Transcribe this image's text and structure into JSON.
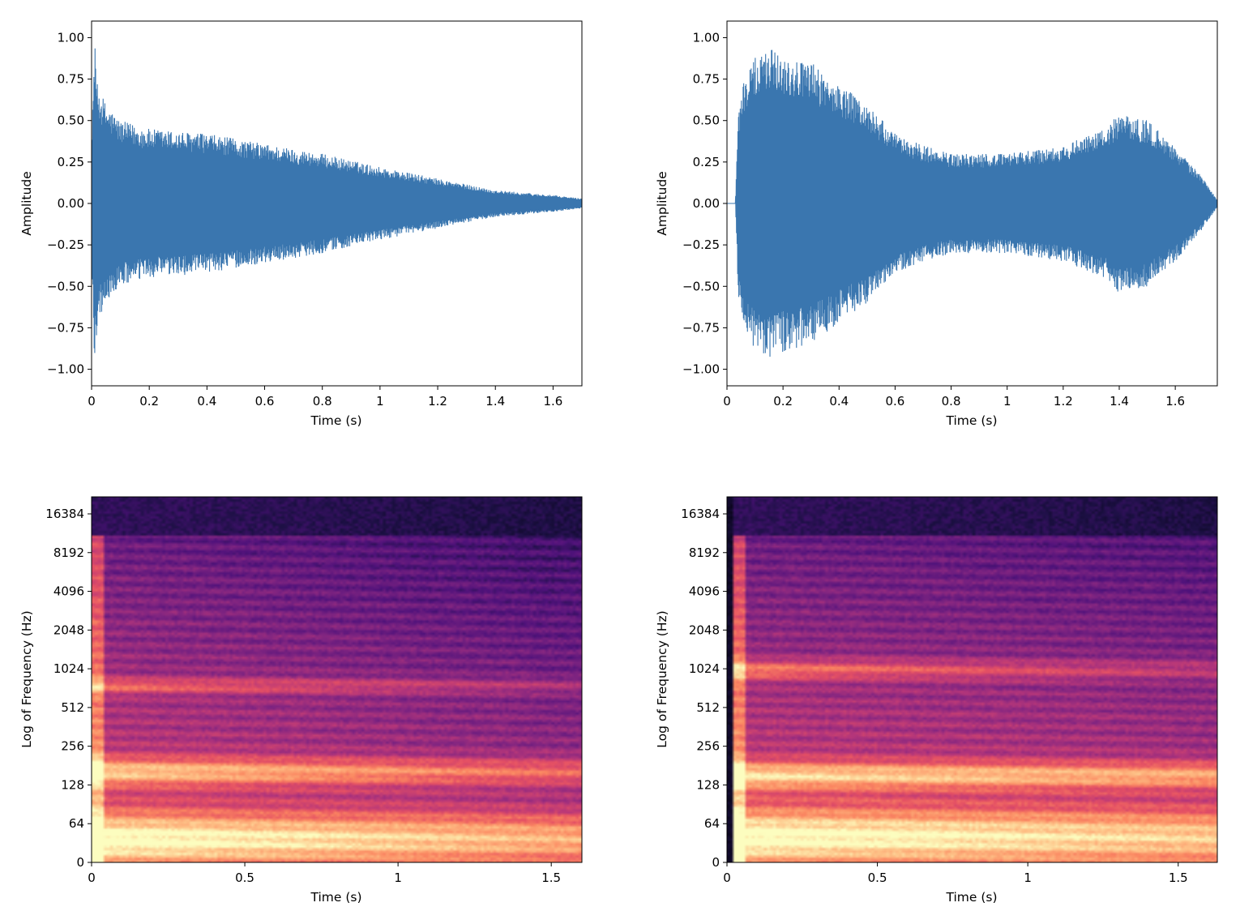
{
  "colors": {
    "waveform": "#3a76af",
    "spectrogram_low": "#1b0c41",
    "spectrogram_mid": "#b73779",
    "spectrogram_high": "#fcfdbf",
    "axes": "#000000",
    "background": "#ffffff"
  },
  "chart_data": [
    {
      "type": "line",
      "panel": "waveform-left",
      "title": "",
      "xlabel": "Time (s)",
      "ylabel": "Amplitude",
      "xlim": [
        0,
        1.7
      ],
      "ylim": [
        -1.1,
        1.1
      ],
      "x_ticks": [
        0,
        0.2,
        0.4,
        0.6,
        0.8,
        1,
        1.2,
        1.4,
        1.6
      ],
      "x_tick_labels": [
        "0",
        "0.2",
        "0.4",
        "0.6",
        "0.8",
        "1",
        "1.2",
        "1.4",
        "1.6"
      ],
      "y_ticks": [
        1.0,
        0.75,
        0.5,
        0.25,
        0.0,
        -0.25,
        -0.5,
        -0.75,
        -1.0
      ],
      "y_tick_labels": [
        "1.00",
        "0.75",
        "0.50",
        "0.25",
        "0.00",
        "−0.25",
        "−0.50",
        "−0.75",
        "−1.00"
      ],
      "grid": false,
      "envelope_x": [
        0,
        0.01,
        0.02,
        0.05,
        0.1,
        0.2,
        0.4,
        0.6,
        0.8,
        1.0,
        1.2,
        1.4,
        1.6,
        1.7
      ],
      "envelope_y": [
        0.3,
        1.0,
        0.72,
        0.6,
        0.5,
        0.45,
        0.42,
        0.36,
        0.3,
        0.22,
        0.15,
        0.08,
        0.05,
        0.03
      ]
    },
    {
      "type": "line",
      "panel": "waveform-right",
      "title": "",
      "xlabel": "Time (s)",
      "ylabel": "Amplitude",
      "xlim": [
        0,
        1.75
      ],
      "ylim": [
        -1.1,
        1.1
      ],
      "x_ticks": [
        0,
        0.2,
        0.4,
        0.6,
        0.8,
        1,
        1.2,
        1.4,
        1.6
      ],
      "x_tick_labels": [
        "0",
        "0.2",
        "0.4",
        "0.6",
        "0.8",
        "1",
        "1.2",
        "1.4",
        "1.6"
      ],
      "y_ticks": [
        1.0,
        0.75,
        0.5,
        0.25,
        0.0,
        -0.25,
        -0.5,
        -0.75,
        -1.0
      ],
      "y_tick_labels": [
        "1.00",
        "0.75",
        "0.50",
        "0.25",
        "0.00",
        "−0.25",
        "−0.50",
        "−0.75",
        "−1.00"
      ],
      "grid": false,
      "envelope_x": [
        0,
        0.03,
        0.04,
        0.06,
        0.1,
        0.15,
        0.2,
        0.3,
        0.4,
        0.5,
        0.6,
        0.7,
        0.8,
        1.0,
        1.2,
        1.35,
        1.4,
        1.5,
        1.6,
        1.7,
        1.75
      ],
      "envelope_y": [
        0.0,
        0.0,
        0.55,
        0.75,
        0.88,
        0.95,
        0.9,
        0.85,
        0.72,
        0.6,
        0.42,
        0.35,
        0.3,
        0.3,
        0.35,
        0.45,
        0.55,
        0.5,
        0.35,
        0.15,
        0.02
      ]
    },
    {
      "type": "heatmap",
      "panel": "spectrogram-left",
      "title": "",
      "xlabel": "Time (s)",
      "ylabel": "Log of Frequency (Hz)",
      "xlim": [
        0,
        1.6
      ],
      "x_ticks": [
        0,
        0.5,
        1,
        1.5
      ],
      "x_tick_labels": [
        "0",
        "0.5",
        "1",
        "1.5"
      ],
      "y_scale": "log2",
      "y_tick_labels": [
        "16384",
        "8192",
        "4096",
        "2048",
        "1024",
        "512",
        "256",
        "128",
        "64",
        "0"
      ],
      "colormap": "magma",
      "cutoff_hz": 11025,
      "onset_s": 0.0,
      "decay_rate": 0.6,
      "bands": [
        {
          "center_hz": 48,
          "width_oct": 0.65,
          "level": 1.0,
          "decay": 0.15
        },
        {
          "center_hz": 160,
          "width_oct": 0.35,
          "level": 0.85,
          "decay": 0.25
        },
        {
          "center_hz": 750,
          "width_oct": 0.2,
          "level": 0.55,
          "decay": 0.4
        }
      ]
    },
    {
      "type": "heatmap",
      "panel": "spectrogram-right",
      "title": "",
      "xlabel": "Time (s)",
      "ylabel": "Log of Frequency (Hz)",
      "xlim": [
        0,
        1.63
      ],
      "x_ticks": [
        0,
        0.5,
        1,
        1.5
      ],
      "x_tick_labels": [
        "0",
        "0.5",
        "1",
        "1.5"
      ],
      "y_scale": "log2",
      "y_tick_labels": [
        "16384",
        "8192",
        "4096",
        "2048",
        "1024",
        "512",
        "256",
        "128",
        "64",
        "0"
      ],
      "colormap": "magma",
      "cutoff_hz": 11025,
      "onset_s": 0.02,
      "decay_rate": 0.35,
      "bands": [
        {
          "center_hz": 50,
          "width_oct": 0.7,
          "level": 1.0,
          "decay": 0.12
        },
        {
          "center_hz": 150,
          "width_oct": 0.35,
          "level": 0.9,
          "decay": 0.1
        },
        {
          "center_hz": 1000,
          "width_oct": 0.25,
          "level": 0.65,
          "decay": 0.45
        }
      ]
    }
  ]
}
